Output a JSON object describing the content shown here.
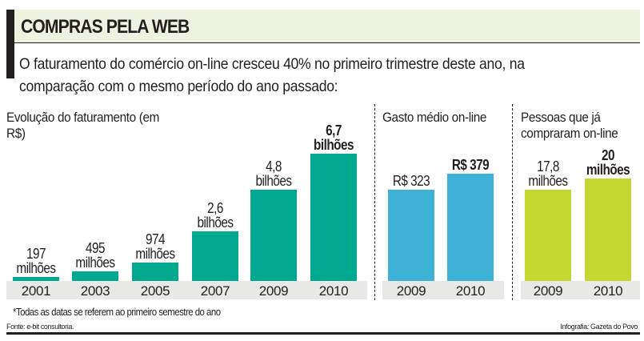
{
  "header": {
    "title": "COMPRAS PELA WEB",
    "subtitle": "O faturamento do comércio on-line cresceu 40% no primeiro trimestre deste ano, na comparação com o mesmo período do ano passado:"
  },
  "chart_data": [
    {
      "type": "bar",
      "title": "Evolução do faturamento (em R$)",
      "categories": [
        "2001",
        "2003",
        "2005",
        "2007",
        "2009",
        "2010"
      ],
      "values": [
        0.197,
        0.495,
        0.974,
        2.6,
        4.8,
        6.7
      ],
      "unit": "R$ bilhões",
      "data_labels": [
        [
          "197",
          "milhões"
        ],
        [
          "495",
          "milhões"
        ],
        [
          "974",
          "milhões"
        ],
        [
          "2,6",
          "bilhões"
        ],
        [
          "4,8",
          "bilhões"
        ],
        [
          "6,7",
          "bilhões"
        ]
      ],
      "color": "#00a88f"
    },
    {
      "type": "bar",
      "title": "Gasto médio on-line",
      "categories": [
        "2009",
        "2010"
      ],
      "values": [
        323,
        379
      ],
      "unit": "R$",
      "data_labels": [
        [
          "R$ 323"
        ],
        [
          "R$ 379"
        ]
      ],
      "color": "#3db1d6"
    },
    {
      "type": "bar",
      "title": "Pessoas que já compraram on-line",
      "categories": [
        "2009",
        "2010"
      ],
      "values": [
        17.8,
        20
      ],
      "unit": "milhões",
      "data_labels": [
        [
          "17,8",
          "milhões"
        ],
        [
          "20",
          "milhões"
        ]
      ],
      "color": "#c2d72f"
    }
  ],
  "footer": {
    "note": "*Todas as datas se referem ao primeiro semestre do ano",
    "source": "Fonte: e-bit consultoria.",
    "credit": "Infografia: Gazeta do Povo"
  }
}
